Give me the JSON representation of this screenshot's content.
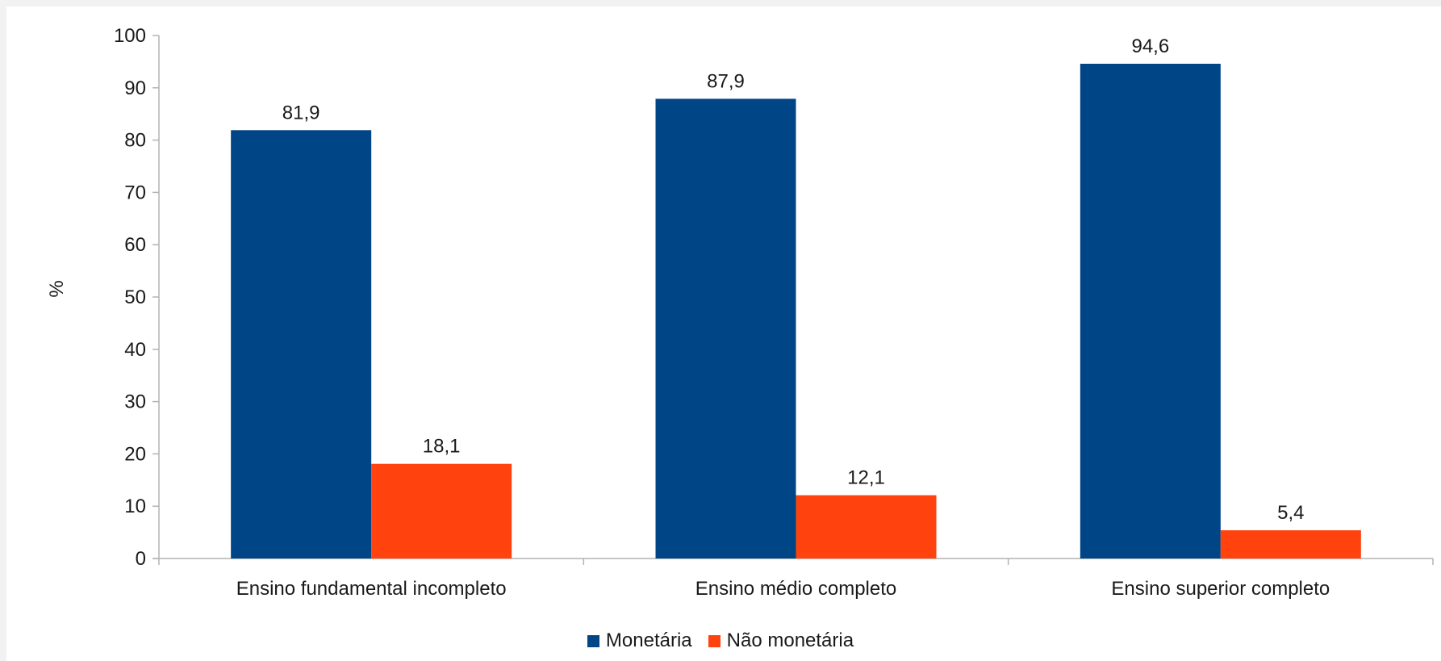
{
  "chart_data": {
    "type": "bar",
    "title": "",
    "xlabel": "",
    "ylabel": "%",
    "ylim": [
      0,
      100
    ],
    "yticks": [
      0,
      10,
      20,
      30,
      40,
      50,
      60,
      70,
      80,
      90,
      100
    ],
    "categories": [
      "Ensino fundamental incompleto",
      "Ensino médio completo",
      "Ensino superior completo"
    ],
    "series": [
      {
        "name": "Monetária",
        "color": "#004586",
        "values": [
          81.9,
          87.9,
          94.6
        ],
        "labels": [
          "81,9",
          "87,9",
          "94,6"
        ]
      },
      {
        "name": "Não monetária",
        "color": "#ff420e",
        "values": [
          18.1,
          12.1,
          5.4
        ],
        "labels": [
          "18,1",
          "12,1",
          "5,4"
        ]
      }
    ],
    "legend_position": "bottom",
    "grid": false
  }
}
